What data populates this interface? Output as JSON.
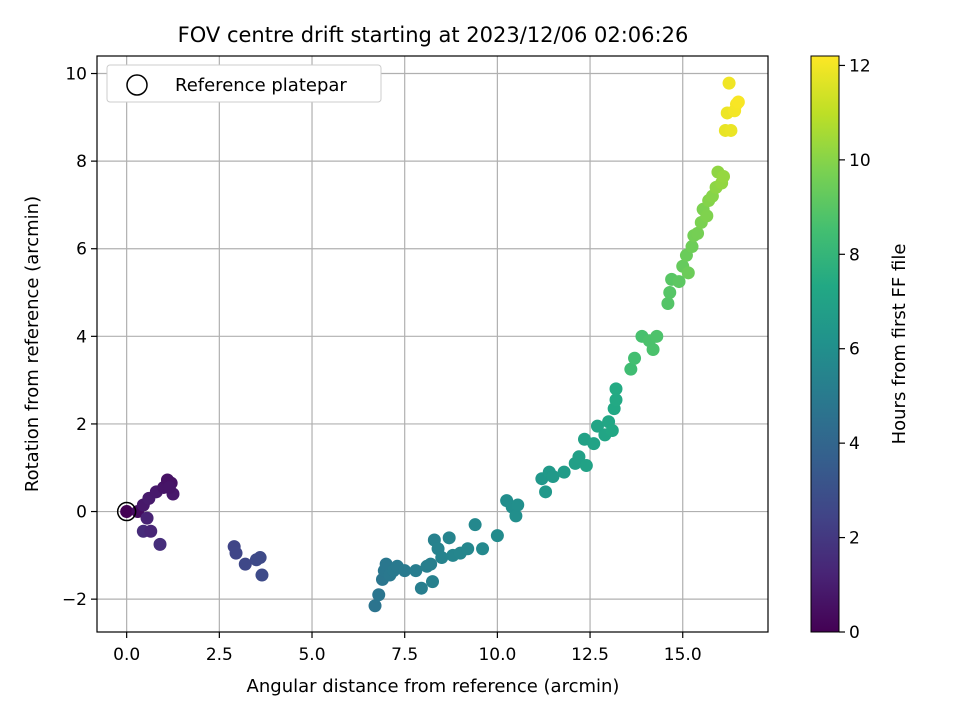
{
  "chart_data": {
    "type": "scatter",
    "title": "FOV centre drift starting at 2023/12/06 02:06:26",
    "xlabel": "Angular distance from reference (arcmin)",
    "ylabel": "Rotation from reference (arcmin)",
    "xlim": [
      -0.8,
      17.3
    ],
    "ylim": [
      -2.75,
      10.4
    ],
    "xticks": [
      "0.0",
      "2.5",
      "5.0",
      "7.5",
      "10.0",
      "12.5",
      "15.0"
    ],
    "xtick_values": [
      0,
      2.5,
      5,
      7.5,
      10,
      12.5,
      15
    ],
    "yticks": [
      "−2",
      "0",
      "2",
      "4",
      "6",
      "8",
      "10"
    ],
    "ytick_values": [
      -2,
      0,
      2,
      4,
      6,
      8,
      10
    ],
    "grid": true,
    "legend": {
      "placement": "top-left",
      "entries": [
        {
          "label": "Reference platepar",
          "marker": "open-circle"
        }
      ]
    },
    "reference_point": {
      "x": 0,
      "y": 0
    },
    "colorbar": {
      "label": "Hours from first FF file",
      "colormap": "viridis",
      "range": [
        0,
        12.2
      ],
      "ticks": [
        "0",
        "2",
        "4",
        "6",
        "8",
        "10",
        "12"
      ],
      "tick_values": [
        0,
        2,
        4,
        6,
        8,
        10,
        12
      ]
    },
    "points": [
      [
        0.0,
        0.0,
        0.0
      ],
      [
        0.3,
        0.0,
        0.4
      ],
      [
        0.45,
        0.15,
        0.8
      ],
      [
        0.55,
        -0.15,
        1.2
      ],
      [
        0.45,
        -0.45,
        1.5
      ],
      [
        0.65,
        -0.45,
        1.3
      ],
      [
        0.9,
        -0.75,
        1.6
      ],
      [
        0.6,
        0.3,
        0.9
      ],
      [
        0.8,
        0.45,
        0.85
      ],
      [
        1.0,
        0.55,
        0.7
      ],
      [
        1.1,
        0.72,
        0.6
      ],
      [
        1.2,
        0.65,
        0.6
      ],
      [
        1.25,
        0.4,
        0.8
      ],
      [
        1.15,
        0.55,
        0.7
      ],
      [
        2.9,
        -0.8,
        2.5
      ],
      [
        2.95,
        -0.95,
        2.55
      ],
      [
        3.2,
        -1.2,
        2.6
      ],
      [
        3.5,
        -1.1,
        2.7
      ],
      [
        3.6,
        -1.05,
        2.7
      ],
      [
        3.65,
        -1.45,
        2.75
      ],
      [
        6.7,
        -2.15,
        4.7
      ],
      [
        6.8,
        -1.9,
        4.75
      ],
      [
        6.9,
        -1.55,
        4.8
      ],
      [
        6.95,
        -1.35,
        4.85
      ],
      [
        7.0,
        -1.2,
        4.85
      ],
      [
        7.1,
        -1.45,
        4.9
      ],
      [
        7.2,
        -1.35,
        4.95
      ],
      [
        7.3,
        -1.25,
        4.95
      ],
      [
        7.5,
        -1.35,
        5.0
      ],
      [
        7.8,
        -1.35,
        5.1
      ],
      [
        7.95,
        -1.75,
        5.15
      ],
      [
        8.1,
        -1.25,
        5.2
      ],
      [
        8.2,
        -1.2,
        5.2
      ],
      [
        8.25,
        -1.6,
        5.25
      ],
      [
        8.3,
        -0.65,
        5.3
      ],
      [
        8.4,
        -0.85,
        5.35
      ],
      [
        8.5,
        -1.05,
        5.4
      ],
      [
        8.7,
        -0.6,
        5.45
      ],
      [
        8.8,
        -1.0,
        5.5
      ],
      [
        9.0,
        -0.95,
        5.55
      ],
      [
        9.2,
        -0.85,
        5.6
      ],
      [
        9.4,
        -0.3,
        5.65
      ],
      [
        9.6,
        -0.85,
        5.7
      ],
      [
        10.0,
        -0.55,
        5.8
      ],
      [
        10.25,
        0.25,
        5.9
      ],
      [
        10.4,
        0.1,
        5.95
      ],
      [
        10.5,
        -0.1,
        6.0
      ],
      [
        10.55,
        0.15,
        6.0
      ],
      [
        11.2,
        0.75,
        6.4
      ],
      [
        11.3,
        0.45,
        6.45
      ],
      [
        11.4,
        0.9,
        6.5
      ],
      [
        11.5,
        0.8,
        6.55
      ],
      [
        11.8,
        0.9,
        6.7
      ],
      [
        12.1,
        1.1,
        6.85
      ],
      [
        12.2,
        1.25,
        6.9
      ],
      [
        12.35,
        1.65,
        6.95
      ],
      [
        12.4,
        1.05,
        7.0
      ],
      [
        12.6,
        1.55,
        7.05
      ],
      [
        12.7,
        1.95,
        7.1
      ],
      [
        12.9,
        1.75,
        7.15
      ],
      [
        13.0,
        2.05,
        7.2
      ],
      [
        13.1,
        1.85,
        7.25
      ],
      [
        13.15,
        2.35,
        7.3
      ],
      [
        13.2,
        2.55,
        7.35
      ],
      [
        13.2,
        2.8,
        7.4
      ],
      [
        13.6,
        3.25,
        8.4
      ],
      [
        13.7,
        3.5,
        8.5
      ],
      [
        13.9,
        4.0,
        8.6
      ],
      [
        14.1,
        3.9,
        8.7
      ],
      [
        14.2,
        3.7,
        8.7
      ],
      [
        14.3,
        4.0,
        8.75
      ],
      [
        14.6,
        4.75,
        8.9
      ],
      [
        14.65,
        5.0,
        8.95
      ],
      [
        14.7,
        5.3,
        9.0
      ],
      [
        14.9,
        5.25,
        9.1
      ],
      [
        15.0,
        5.6,
        9.3
      ],
      [
        15.1,
        5.85,
        9.4
      ],
      [
        15.15,
        5.45,
        9.45
      ],
      [
        15.25,
        6.05,
        9.5
      ],
      [
        15.3,
        6.3,
        9.6
      ],
      [
        15.4,
        6.35,
        9.65
      ],
      [
        15.5,
        6.6,
        9.75
      ],
      [
        15.55,
        6.9,
        9.8
      ],
      [
        15.65,
        6.75,
        9.85
      ],
      [
        15.7,
        7.1,
        9.95
      ],
      [
        15.8,
        7.2,
        10.0
      ],
      [
        15.9,
        7.4,
        10.1
      ],
      [
        15.95,
        7.75,
        10.15
      ],
      [
        16.05,
        7.5,
        10.2
      ],
      [
        16.1,
        7.65,
        10.25
      ],
      [
        16.15,
        8.7,
        11.8
      ],
      [
        16.2,
        9.1,
        11.9
      ],
      [
        16.25,
        9.78,
        11.95
      ],
      [
        16.3,
        8.7,
        11.85
      ],
      [
        16.4,
        9.15,
        12.0
      ],
      [
        16.45,
        9.3,
        12.05
      ],
      [
        16.5,
        9.35,
        12.1
      ]
    ]
  }
}
